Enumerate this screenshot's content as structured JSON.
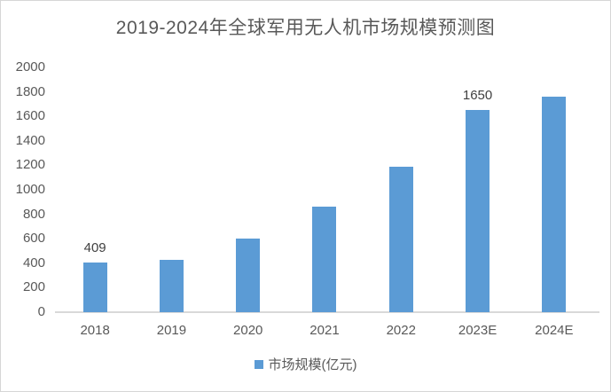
{
  "chart_data": {
    "type": "bar",
    "title": "2019-2024年全球军用无人机市场规模预测图",
    "categories": [
      "2018",
      "2019",
      "2020",
      "2021",
      "2022",
      "2023E",
      "2024E"
    ],
    "series": [
      {
        "name": "市场规模(亿元)",
        "values": [
          409,
          430,
          600,
          865,
          1190,
          1650,
          1760
        ],
        "point_labels": [
          "409",
          "",
          "",
          "",
          "",
          "1650",
          ""
        ]
      }
    ],
    "xlabel": "",
    "ylabel": "",
    "ylim": [
      0,
      2000
    ],
    "ytick_step": 200,
    "grid": false,
    "legend_position": "bottom"
  },
  "legend": {
    "label": "市场规模(亿元)"
  },
  "colors": {
    "bar": "#5b9bd5",
    "title_text": "#595959",
    "axis_text": "#595959",
    "data_label_text": "#404040",
    "axis_line": "#d9d9d9",
    "frame_border": "#d6d6d6"
  }
}
